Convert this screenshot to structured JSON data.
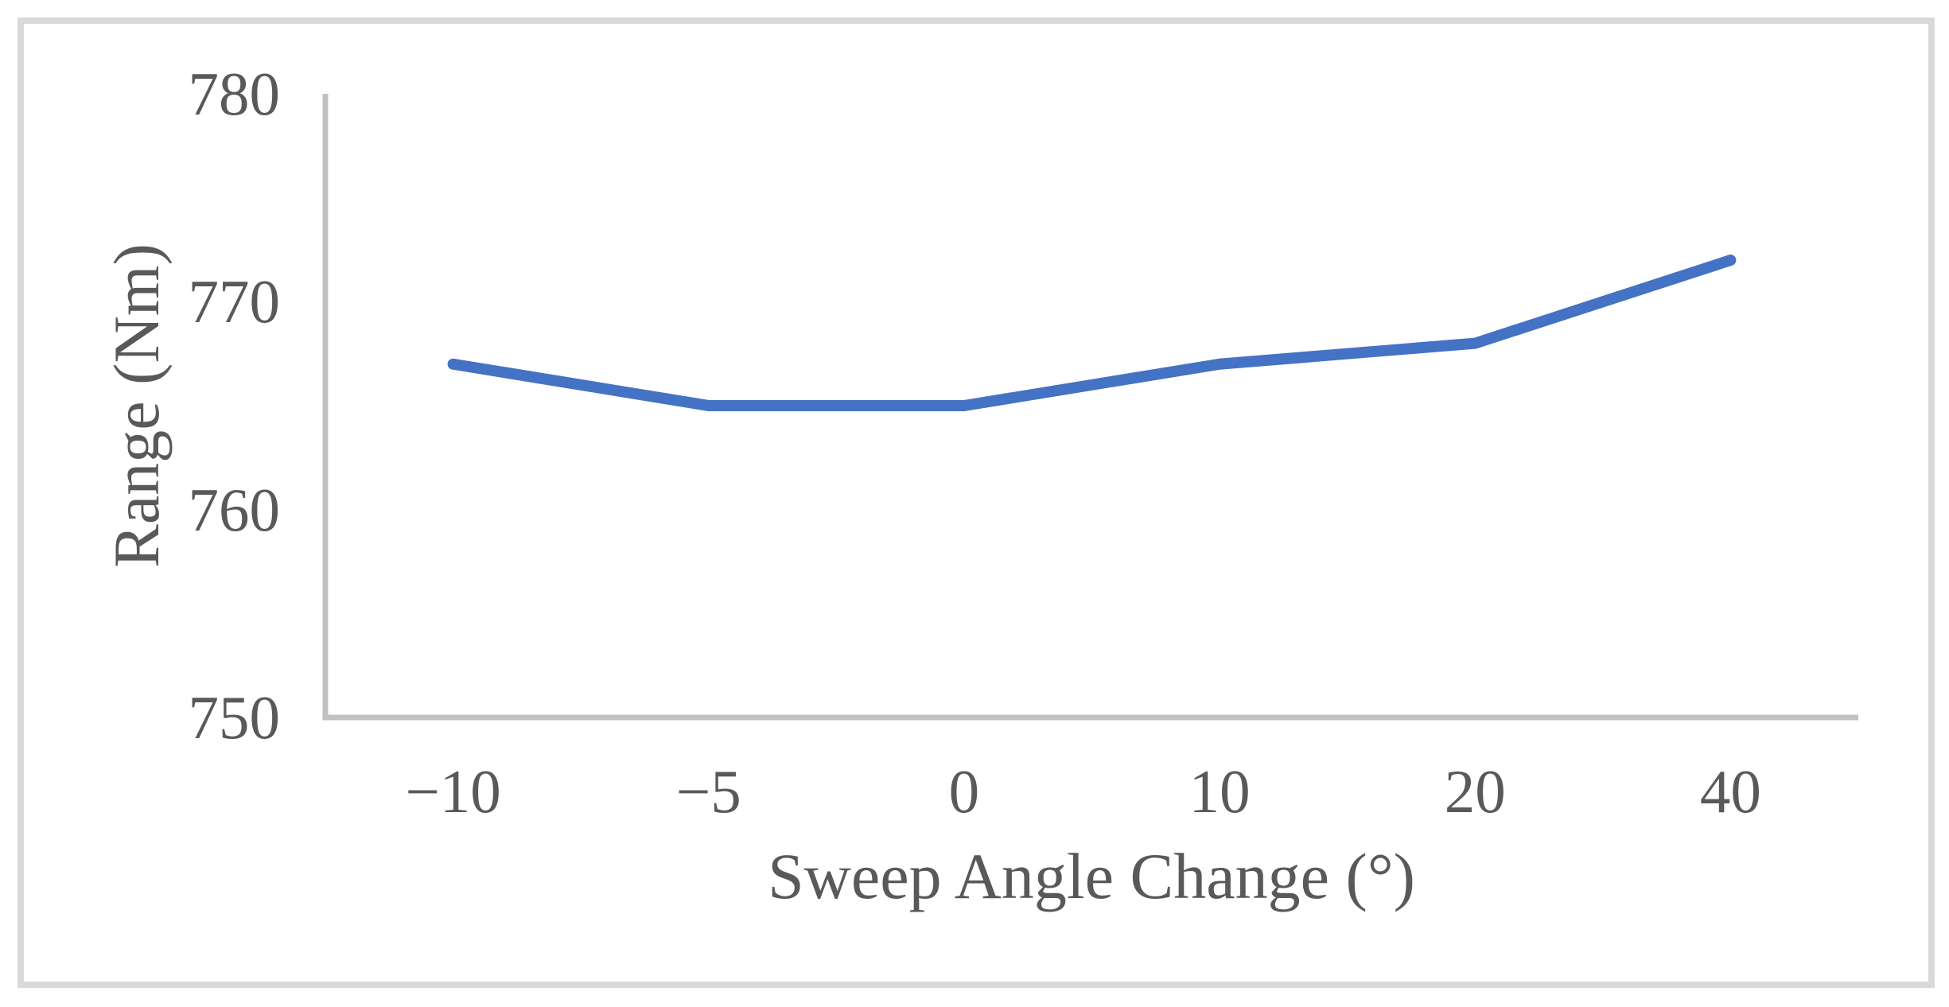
{
  "chart_data": {
    "type": "line",
    "categories": [
      "−10",
      "−5",
      "0",
      "10",
      "20",
      "40"
    ],
    "series": [
      {
        "name": "Range",
        "values": [
          767,
          765,
          765,
          767,
          768,
          772
        ]
      }
    ],
    "title": "",
    "xlabel": "Sweep Angle Change (°)",
    "ylabel": "Range (Nm)",
    "ylim": [
      750,
      780
    ],
    "yticks": [
      750,
      760,
      770,
      780
    ],
    "grid": false,
    "legend": false,
    "colors": {
      "line": "#4472C4",
      "axis": "#C1C1C1",
      "text": "#595959",
      "frame": "#D9D9D9"
    }
  }
}
